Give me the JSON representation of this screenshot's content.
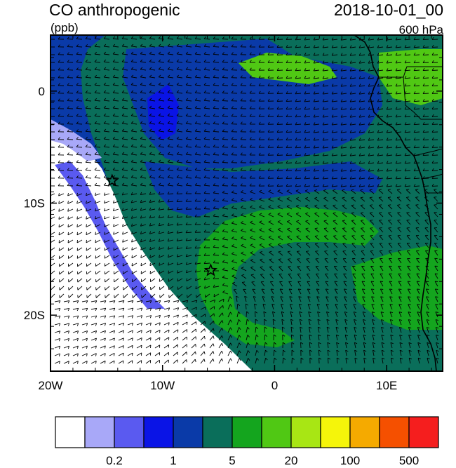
{
  "header": {
    "title": "CO anthropogenic",
    "units": "(ppb)",
    "datetime": "2018-10-01_00",
    "level": "600 hPa"
  },
  "map": {
    "lon_range": [
      -20,
      15
    ],
    "lat_range": [
      -25,
      5
    ],
    "x_ticks": [
      {
        "value": -20,
        "label": "20W"
      },
      {
        "value": -10,
        "label": "10W"
      },
      {
        "value": 0,
        "label": "0"
      },
      {
        "value": 10,
        "label": "10E"
      }
    ],
    "y_ticks": [
      {
        "value": 0,
        "label": "0"
      },
      {
        "value": -10,
        "label": "10S"
      },
      {
        "value": -20,
        "label": "20S"
      }
    ],
    "markers": [
      {
        "name": "station-star-1",
        "lon": -14.5,
        "lat": -8.0
      },
      {
        "name": "station-star-2",
        "lon": -5.7,
        "lat": -16.0
      }
    ],
    "land_color": "#3ca83c",
    "ocean_background": "#0a3aa8",
    "wind_vectors": "shown"
  },
  "colorbar": {
    "colors": [
      "#ffffff",
      "#a8a8f8",
      "#5a5af0",
      "#0a14e6",
      "#0a3aa8",
      "#0a6e5a",
      "#14a51e",
      "#50c814",
      "#a8e614",
      "#f5f50a",
      "#f5aa00",
      "#f55000",
      "#f51e1e"
    ],
    "labels": [
      "0.2",
      "1",
      "5",
      "20",
      "100",
      "500"
    ]
  }
}
